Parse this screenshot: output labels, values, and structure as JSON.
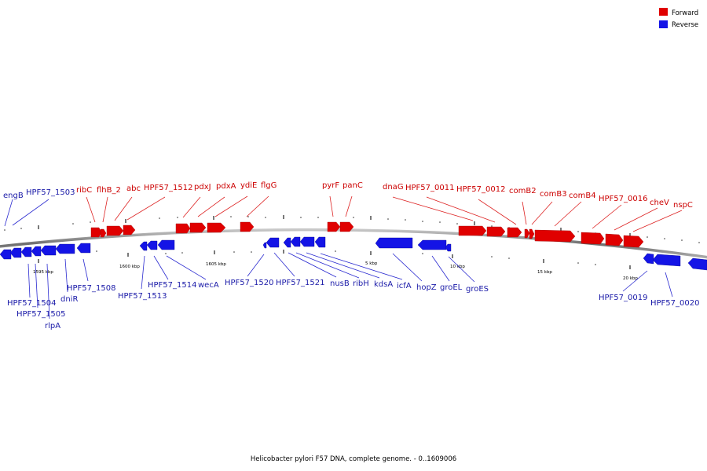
{
  "caption": "Helicobacter pylori F57 DNA, complete genome. - 0..1609006",
  "legend": [
    {
      "label": "Forward",
      "color": "#e00000"
    },
    {
      "label": "Reverse",
      "color": "#1414e6"
    }
  ],
  "colors": {
    "forward": "#e00000",
    "reverse": "#1414e6",
    "forward_line": "#dd2222",
    "reverse_line": "#2a2ad0",
    "backbone": "#7a7a7a"
  },
  "scale_labels": [
    "1595 kbp",
    "1600 kbp",
    "1605 kbp",
    "5 kbp",
    "10 kbp",
    "15 kbp",
    "20 kbp"
  ],
  "forward_genes": [
    "ribC",
    "flhB_2",
    "abc",
    "HPF57_1512",
    "pdxJ",
    "pdxA",
    "ydiE",
    "flgG",
    "pyrF",
    "panC",
    "dnaG",
    "HPF57_0011",
    "HPF57_0012",
    "comB2",
    "comB3",
    "comB4",
    "HPF57_0016",
    "cheV",
    "nspC"
  ],
  "reverse_genes": [
    "engB",
    "HPF57_1503",
    "HPF57_1504",
    "HPF57_1505",
    "rlpA",
    "dniR",
    "HPF57_1508",
    "HPF57_1513",
    "HPF57_1514",
    "wecA",
    "HPF57_1520",
    "HPF57_1521",
    "nusB",
    "ribH",
    "kdsA",
    "icfA",
    "hopZ",
    "groEL",
    "groES",
    "HPF57_0019",
    "HPF57_0020"
  ]
}
